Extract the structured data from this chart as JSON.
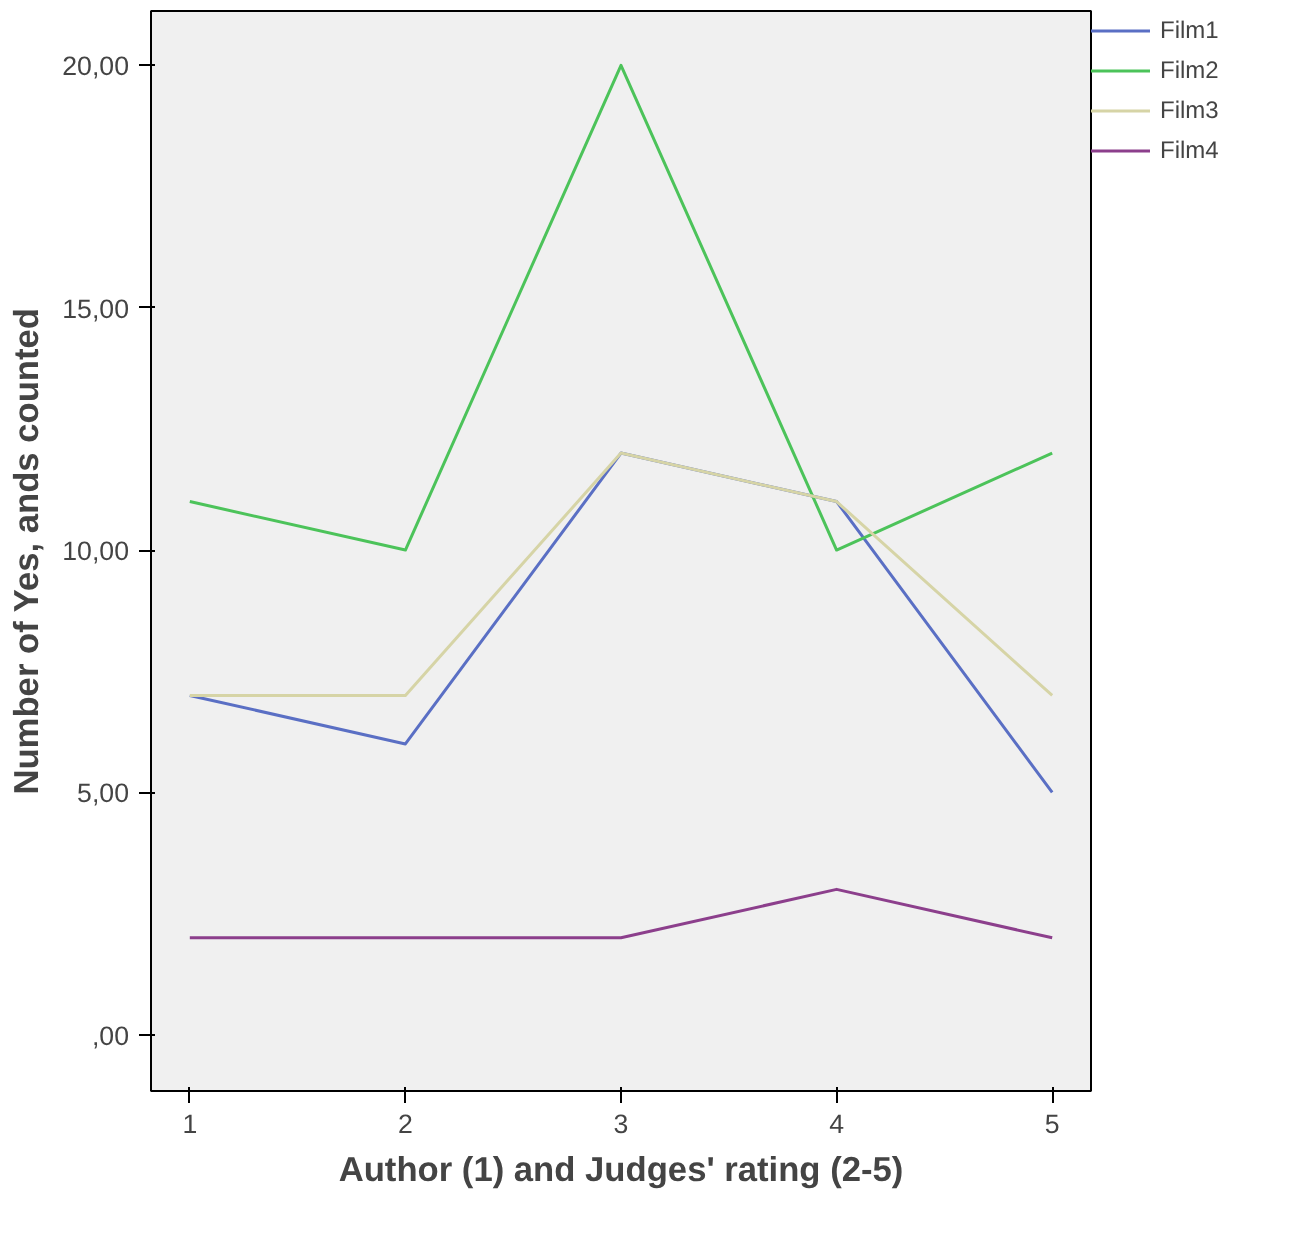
{
  "chart_data": {
    "type": "line",
    "xlabel": "Author (1) and Judges' rating (2-5)",
    "ylabel": "Number of Yes, ands counted",
    "x": [
      1,
      2,
      3,
      4,
      5
    ],
    "series": [
      {
        "name": "Film1",
        "color": "#5a6fc4",
        "values": [
          7,
          6,
          12,
          11,
          5
        ]
      },
      {
        "name": "Film2",
        "color": "#4cc35a",
        "values": [
          11,
          10,
          20,
          10,
          12
        ]
      },
      {
        "name": "Film3",
        "color": "#d6d4a6",
        "values": [
          7,
          7,
          12,
          11,
          7
        ]
      },
      {
        "name": "Film4",
        "color": "#8c3f8c",
        "values": [
          2,
          2,
          2,
          3,
          2
        ]
      }
    ],
    "xlim": [
      0.82,
      5.18
    ],
    "xticks": [
      1,
      2,
      3,
      4,
      5
    ],
    "ylim": [
      -1.16,
      21.12
    ],
    "yticks": [
      {
        "value": 0,
        "label": ",00"
      },
      {
        "value": 5,
        "label": "5,00"
      },
      {
        "value": 10,
        "label": "10,00"
      },
      {
        "value": 15,
        "label": "15,00"
      },
      {
        "value": 20,
        "label": "20,00"
      }
    ],
    "grid": false,
    "legend": "top right",
    "marker": "none",
    "line_style": "solid"
  }
}
